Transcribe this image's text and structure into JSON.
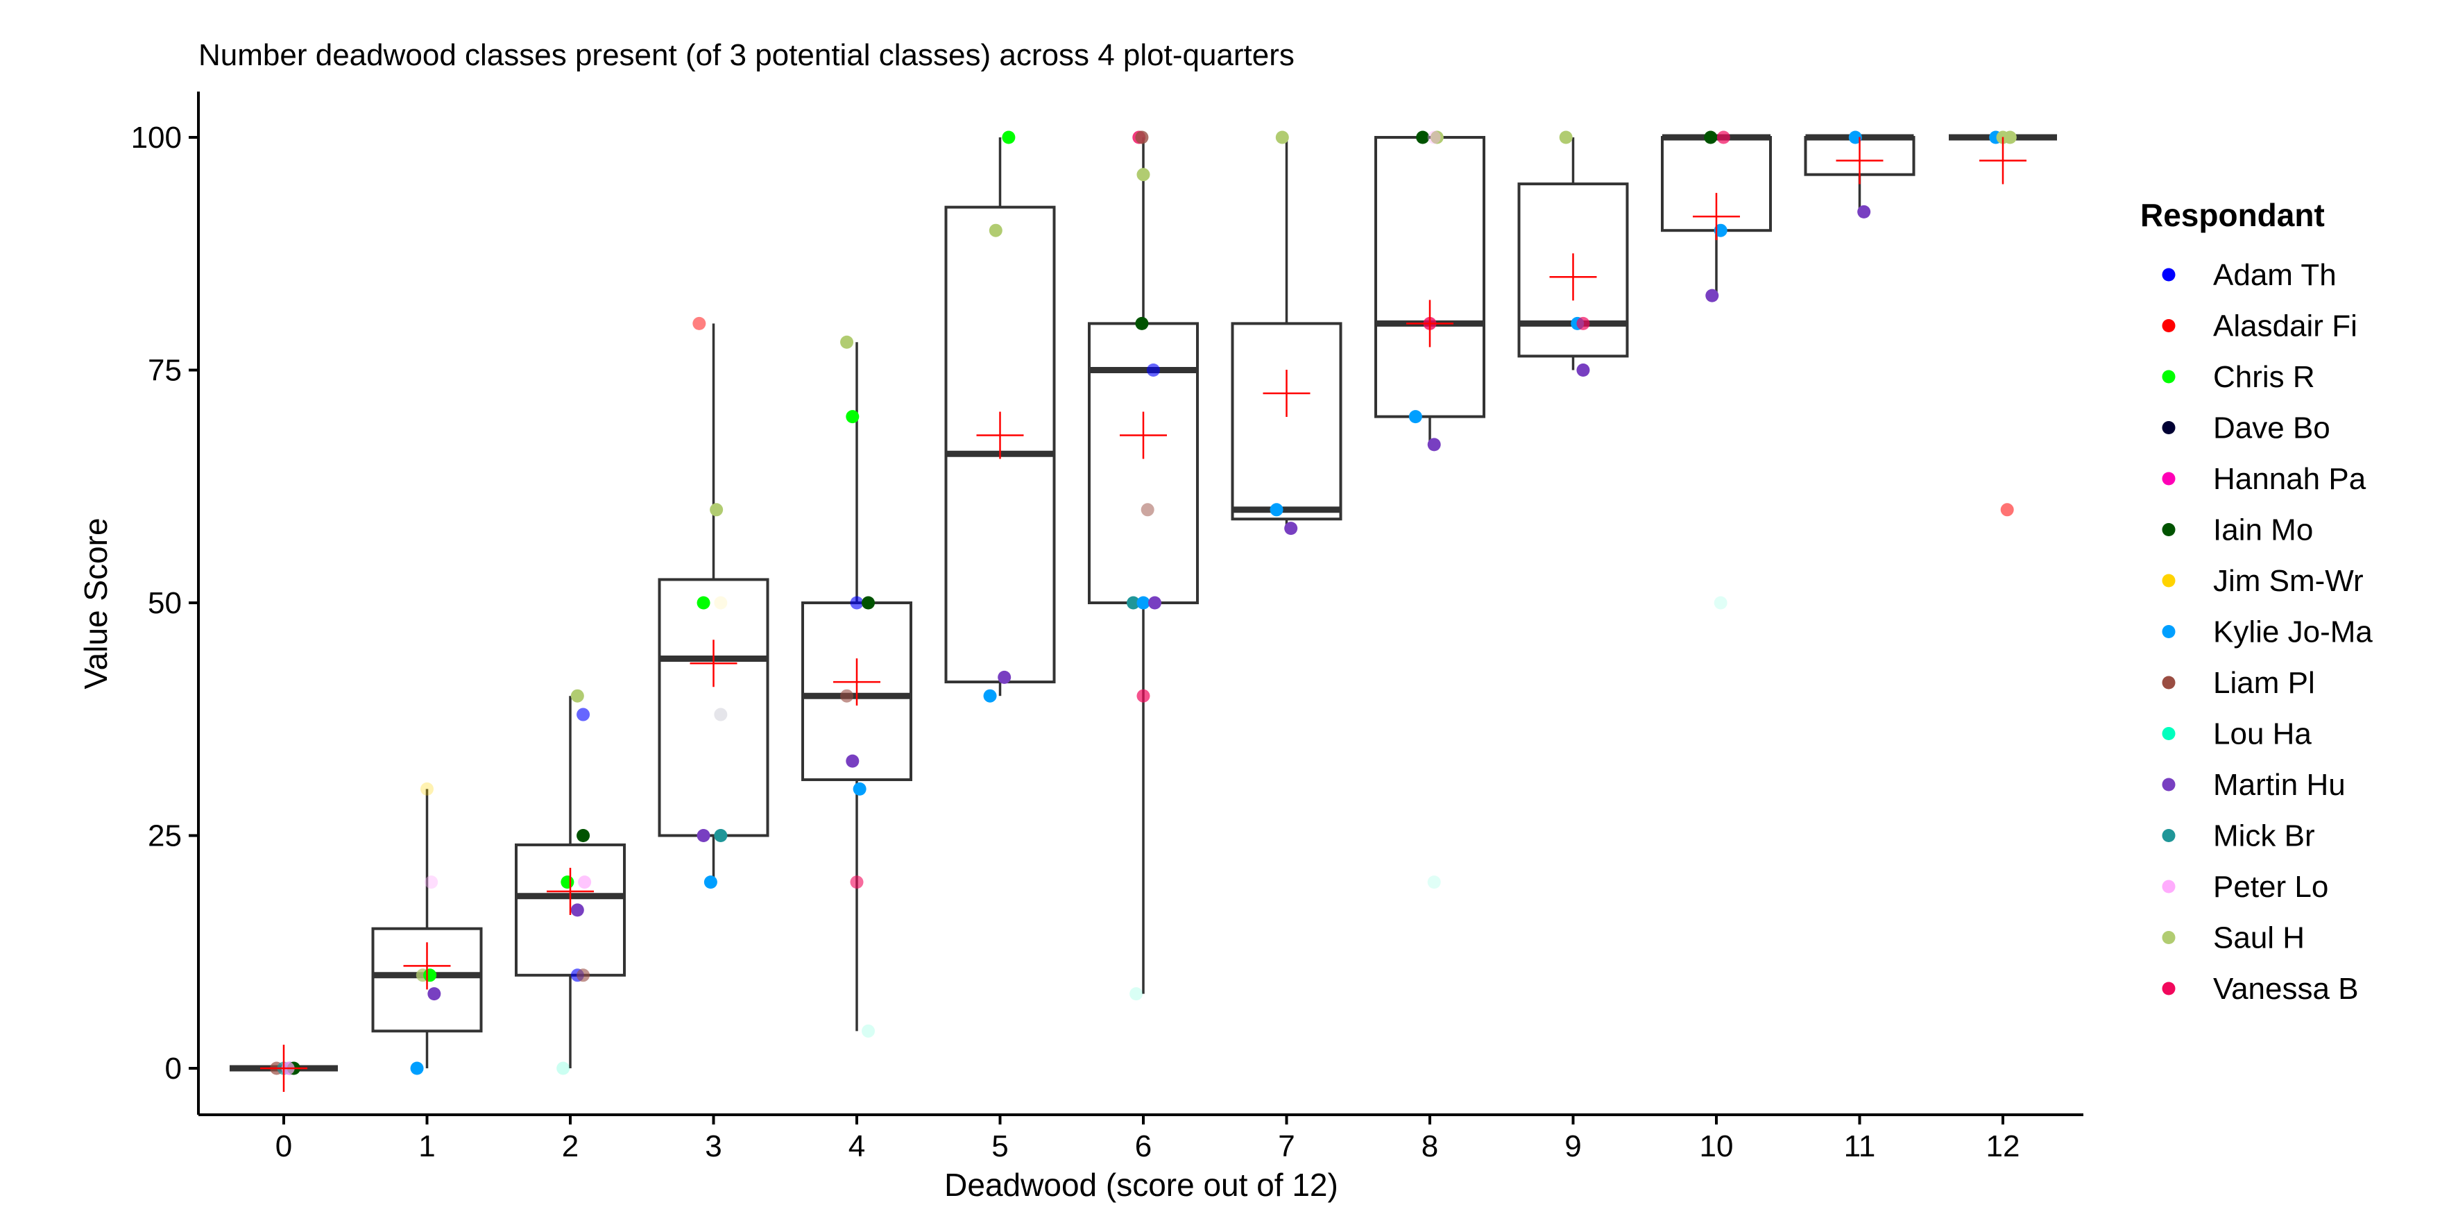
{
  "chart_data": {
    "type": "box",
    "title": "Number deadwood classes present (of 3 potential classes)  across 4 plot-quarters",
    "xlabel": "Deadwood (score out of 12)",
    "ylabel": "Value Score",
    "x_ticks": [
      "0",
      "1",
      "2",
      "3",
      "4",
      "5",
      "6",
      "7",
      "8",
      "9",
      "10",
      "11",
      "12"
    ],
    "y_ticks": [
      "0",
      "25",
      "50",
      "75",
      "100"
    ],
    "ylim": [
      -5,
      105
    ],
    "grid": false,
    "legend": {
      "title": "Respondant",
      "placement": "right",
      "entries": [
        {
          "name": "Adam Th",
          "color": "#0000ff"
        },
        {
          "name": "Alasdair Fi",
          "color": "#ff0000"
        },
        {
          "name": "Chris R",
          "color": "#00ff00"
        },
        {
          "name": "Dave Bo",
          "color": "#000033"
        },
        {
          "name": "Hannah Pa",
          "color": "#ff00b6"
        },
        {
          "name": "Iain Mo",
          "color": "#005300"
        },
        {
          "name": "Jim Sm-Wr",
          "color": "#ffd300"
        },
        {
          "name": "Kylie Jo-Ma",
          "color": "#009fff"
        },
        {
          "name": "Liam Pl",
          "color": "#9a4d42"
        },
        {
          "name": "Lou Ha",
          "color": "#00ffbe"
        },
        {
          "name": "Martin Hu",
          "color": "#783fc1"
        },
        {
          "name": "Mick Br",
          "color": "#1f9698"
        },
        {
          "name": "Peter Lo",
          "color": "#ffacfd"
        },
        {
          "name": "Saul H",
          "color": "#b1cc71"
        },
        {
          "name": "Vanessa B",
          "color": "#f1085c"
        }
      ]
    },
    "mean_marker_color": "#ff0000",
    "boxes": [
      {
        "x": 0,
        "lower_whisker": 0,
        "q1": 0,
        "median": 0,
        "q3": 0,
        "upper_whisker": 0,
        "mean": 0
      },
      {
        "x": 1,
        "lower_whisker": 0,
        "q1": 4,
        "median": 10,
        "q3": 15,
        "upper_whisker": 30,
        "mean": 11
      },
      {
        "x": 2,
        "lower_whisker": 0,
        "q1": 10,
        "median": 18.5,
        "q3": 24,
        "upper_whisker": 40,
        "mean": 19
      },
      {
        "x": 3,
        "lower_whisker": 20,
        "q1": 25,
        "median": 44,
        "q3": 52.5,
        "upper_whisker": 80,
        "mean": 43.5
      },
      {
        "x": 4,
        "lower_whisker": 4,
        "q1": 31,
        "median": 40,
        "q3": 50,
        "upper_whisker": 78,
        "mean": 41.5
      },
      {
        "x": 5,
        "lower_whisker": 40,
        "q1": 41.5,
        "median": 66,
        "q3": 92.5,
        "upper_whisker": 100,
        "mean": 68
      },
      {
        "x": 6,
        "lower_whisker": 8,
        "q1": 50,
        "median": 75,
        "q3": 80,
        "upper_whisker": 100,
        "mean": 68
      },
      {
        "x": 7,
        "lower_whisker": 58,
        "q1": 59,
        "median": 60,
        "q3": 80,
        "upper_whisker": 100,
        "mean": 72.5
      },
      {
        "x": 8,
        "lower_whisker": 67,
        "q1": 70,
        "median": 80,
        "q3": 100,
        "upper_whisker": 100,
        "mean": 80
      },
      {
        "x": 9,
        "lower_whisker": 75,
        "q1": 76.5,
        "median": 80,
        "q3": 95,
        "upper_whisker": 100,
        "mean": 85
      },
      {
        "x": 10,
        "lower_whisker": 83,
        "q1": 90,
        "median": 100,
        "q3": 100,
        "upper_whisker": 100,
        "mean": 91.5
      },
      {
        "x": 11,
        "lower_whisker": 92,
        "q1": 96,
        "median": 100,
        "q3": 100,
        "upper_whisker": 100,
        "mean": 97.5
      },
      {
        "x": 12,
        "lower_whisker": 100,
        "q1": 100,
        "median": 100,
        "q3": 100,
        "upper_whisker": 100,
        "mean": 97.5
      }
    ],
    "points": [
      {
        "x": -0.05,
        "y": 0,
        "respondant": "Liam Pl",
        "alpha": 0.7
      },
      {
        "x": 0.0,
        "y": 0,
        "respondant": "Mick Br",
        "alpha": 0.7
      },
      {
        "x": 0.04,
        "y": 0,
        "respondant": "Martin Hu",
        "alpha": 0.7
      },
      {
        "x": 0.07,
        "y": 0,
        "respondant": "Iain Mo",
        "alpha": 1
      },
      {
        "x": 0.03,
        "y": 0,
        "respondant": "Peter Lo",
        "alpha": 0.7
      },
      {
        "x": 0.93,
        "y": 0,
        "respondant": "Kylie Jo-Ma",
        "alpha": 1
      },
      {
        "x": 0.97,
        "y": 10,
        "respondant": "Saul H",
        "alpha": 0.8
      },
      {
        "x": 1.02,
        "y": 10,
        "respondant": "Chris R",
        "alpha": 1
      },
      {
        "x": 1.05,
        "y": 8,
        "respondant": "Martin Hu",
        "alpha": 1
      },
      {
        "x": 1.03,
        "y": 20,
        "respondant": "Peter Lo",
        "alpha": 0.4
      },
      {
        "x": 1.0,
        "y": 30,
        "respondant": "Jim Sm-Wr",
        "alpha": 0.3
      },
      {
        "x": 1.95,
        "y": 0,
        "respondant": "Lou Ha",
        "alpha": 0.2
      },
      {
        "x": 2.05,
        "y": 10,
        "respondant": "Adam Th",
        "alpha": 0.6
      },
      {
        "x": 2.09,
        "y": 10,
        "respondant": "Liam Pl",
        "alpha": 0.6
      },
      {
        "x": 1.98,
        "y": 20,
        "respondant": "Chris R",
        "alpha": 1
      },
      {
        "x": 2.1,
        "y": 20,
        "respondant": "Peter Lo",
        "alpha": 0.7
      },
      {
        "x": 2.05,
        "y": 17,
        "respondant": "Martin Hu",
        "alpha": 1
      },
      {
        "x": 2.09,
        "y": 25,
        "respondant": "Iain Mo",
        "alpha": 1
      },
      {
        "x": 2.09,
        "y": 38,
        "respondant": "Adam Th",
        "alpha": 0.6
      },
      {
        "x": 2.05,
        "y": 40,
        "respondant": "Saul H",
        "alpha": 1
      },
      {
        "x": 2.98,
        "y": 20,
        "respondant": "Kylie Jo-Ma",
        "alpha": 1
      },
      {
        "x": 2.93,
        "y": 25,
        "respondant": "Martin Hu",
        "alpha": 1
      },
      {
        "x": 3.05,
        "y": 25,
        "respondant": "Mick Br",
        "alpha": 1
      },
      {
        "x": 3.05,
        "y": 38,
        "respondant": "Dave Bo",
        "alpha": 0.1
      },
      {
        "x": 2.93,
        "y": 50,
        "respondant": "Chris R",
        "alpha": 1
      },
      {
        "x": 3.05,
        "y": 50,
        "respondant": "Jim Sm-Wr",
        "alpha": 0.1
      },
      {
        "x": 3.02,
        "y": 60,
        "respondant": "Saul H",
        "alpha": 1
      },
      {
        "x": 2.9,
        "y": 80,
        "respondant": "Alasdair Fi",
        "alpha": 0.5
      },
      {
        "x": 4.08,
        "y": 4,
        "respondant": "Lou Ha",
        "alpha": 0.15
      },
      {
        "x": 4.0,
        "y": 20,
        "respondant": "Vanessa B",
        "alpha": 0.6
      },
      {
        "x": 4.02,
        "y": 30,
        "respondant": "Kylie Jo-Ma",
        "alpha": 1
      },
      {
        "x": 3.97,
        "y": 33,
        "respondant": "Martin Hu",
        "alpha": 1
      },
      {
        "x": 3.93,
        "y": 40,
        "respondant": "Liam Pl",
        "alpha": 0.6
      },
      {
        "x": 4.0,
        "y": 50,
        "respondant": "Adam Th",
        "alpha": 0.6
      },
      {
        "x": 4.08,
        "y": 50,
        "respondant": "Iain Mo",
        "alpha": 1
      },
      {
        "x": 3.97,
        "y": 70,
        "respondant": "Chris R",
        "alpha": 1
      },
      {
        "x": 3.93,
        "y": 78,
        "respondant": "Saul H",
        "alpha": 1
      },
      {
        "x": 4.93,
        "y": 40,
        "respondant": "Kylie Jo-Ma",
        "alpha": 1
      },
      {
        "x": 5.03,
        "y": 42,
        "respondant": "Martin Hu",
        "alpha": 1
      },
      {
        "x": 4.97,
        "y": 90,
        "respondant": "Saul H",
        "alpha": 1
      },
      {
        "x": 5.06,
        "y": 100,
        "respondant": "Chris R",
        "alpha": 1
      },
      {
        "x": 5.95,
        "y": 8,
        "respondant": "Lou Ha",
        "alpha": 0.15
      },
      {
        "x": 6.0,
        "y": 40,
        "respondant": "Vanessa B",
        "alpha": 0.7
      },
      {
        "x": 5.93,
        "y": 50,
        "respondant": "Mick Br",
        "alpha": 1
      },
      {
        "x": 6.0,
        "y": 50,
        "respondant": "Kylie Jo-Ma",
        "alpha": 1
      },
      {
        "x": 6.08,
        "y": 50,
        "respondant": "Martin Hu",
        "alpha": 1
      },
      {
        "x": 6.03,
        "y": 60,
        "respondant": "Liam Pl",
        "alpha": 0.5
      },
      {
        "x": 6.07,
        "y": 75,
        "respondant": "Adam Th",
        "alpha": 0.6
      },
      {
        "x": 5.99,
        "y": 80,
        "respondant": "Iain Mo",
        "alpha": 1
      },
      {
        "x": 6.0,
        "y": 96,
        "respondant": "Saul H",
        "alpha": 1
      },
      {
        "x": 5.97,
        "y": 100,
        "respondant": "Vanessa B",
        "alpha": 0.8
      },
      {
        "x": 5.99,
        "y": 100,
        "respondant": "Liam Pl",
        "alpha": 0.8
      },
      {
        "x": 6.93,
        "y": 60,
        "respondant": "Kylie Jo-Ma",
        "alpha": 1
      },
      {
        "x": 7.03,
        "y": 58,
        "respondant": "Martin Hu",
        "alpha": 1
      },
      {
        "x": 6.97,
        "y": 100,
        "respondant": "Saul H",
        "alpha": 1
      },
      {
        "x": 8.03,
        "y": 20,
        "respondant": "Lou Ha",
        "alpha": 0.12
      },
      {
        "x": 7.9,
        "y": 70,
        "respondant": "Kylie Jo-Ma",
        "alpha": 1
      },
      {
        "x": 8.03,
        "y": 67,
        "respondant": "Martin Hu",
        "alpha": 1
      },
      {
        "x": 8.0,
        "y": 80,
        "respondant": "Vanessa B",
        "alpha": 0.8
      },
      {
        "x": 7.95,
        "y": 100,
        "respondant": "Iain Mo",
        "alpha": 1
      },
      {
        "x": 8.05,
        "y": 100,
        "respondant": "Saul H",
        "alpha": 1
      },
      {
        "x": 8.03,
        "y": 100,
        "respondant": "Peter Lo",
        "alpha": 0.4
      },
      {
        "x": 9.03,
        "y": 80,
        "respondant": "Kylie Jo-Ma",
        "alpha": 1
      },
      {
        "x": 9.07,
        "y": 80,
        "respondant": "Vanessa B",
        "alpha": 0.7
      },
      {
        "x": 9.07,
        "y": 75,
        "respondant": "Martin Hu",
        "alpha": 1
      },
      {
        "x": 8.95,
        "y": 100,
        "respondant": "Saul H",
        "alpha": 1
      },
      {
        "x": 10.03,
        "y": 50,
        "respondant": "Lou Ha",
        "alpha": 0.12
      },
      {
        "x": 9.97,
        "y": 83,
        "respondant": "Martin Hu",
        "alpha": 1
      },
      {
        "x": 10.03,
        "y": 90,
        "respondant": "Kylie Jo-Ma",
        "alpha": 1
      },
      {
        "x": 9.96,
        "y": 100,
        "respondant": "Iain Mo",
        "alpha": 1
      },
      {
        "x": 10.05,
        "y": 100,
        "respondant": "Vanessa B",
        "alpha": 0.7
      },
      {
        "x": 11.03,
        "y": 92,
        "respondant": "Martin Hu",
        "alpha": 1
      },
      {
        "x": 10.97,
        "y": 100,
        "respondant": "Kylie Jo-Ma",
        "alpha": 1
      },
      {
        "x": 12.03,
        "y": 60,
        "respondant": "Alasdair Fi",
        "alpha": 0.55
      },
      {
        "x": 11.95,
        "y": 100,
        "respondant": "Kylie Jo-Ma",
        "alpha": 1
      },
      {
        "x": 12.0,
        "y": 100,
        "respondant": "Saul H",
        "alpha": 1
      },
      {
        "x": 12.05,
        "y": 100,
        "respondant": "Saul H",
        "alpha": 1
      }
    ]
  }
}
